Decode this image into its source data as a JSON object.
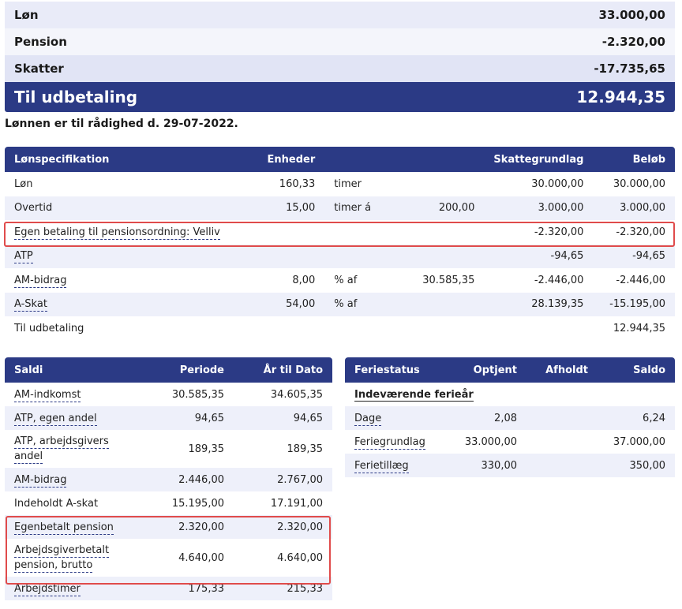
{
  "summary": {
    "rows": [
      {
        "label": "Løn",
        "value": "33.000,00"
      },
      {
        "label": "Pension",
        "value": "-2.320,00"
      },
      {
        "label": "Skatter",
        "value": "-17.735,65"
      }
    ],
    "total": {
      "label": "Til udbetaling",
      "value": "12.944,35"
    }
  },
  "availability_text": "Lønnen er til rådighed d. 29-07-2022.",
  "payslip": {
    "headers": {
      "label": "Lønspecifikation",
      "units": "Enheder",
      "tax_base": "Skattegrundlag",
      "amount": "Beløb"
    },
    "rows": [
      {
        "label": "Løn",
        "units": "160,33",
        "unit_text": "timer",
        "rate": "",
        "tax_base": "30.000,00",
        "amount": "30.000,00"
      },
      {
        "label": "Overtid",
        "units": "15,00",
        "unit_text": "timer á",
        "rate": "200,00",
        "tax_base": "3.000,00",
        "amount": "3.000,00"
      },
      {
        "label": "Egen betaling til pensionsordning: Velliv",
        "units": "",
        "unit_text": "",
        "rate": "",
        "tax_base": "-2.320,00",
        "amount": "-2.320,00"
      },
      {
        "label": "ATP",
        "units": "",
        "unit_text": "",
        "rate": "",
        "tax_base": "-94,65",
        "amount": "-94,65"
      },
      {
        "label": "AM-bidrag",
        "units": "8,00",
        "unit_text": "% af",
        "rate": "30.585,35",
        "tax_base": "-2.446,00",
        "amount": "-2.446,00"
      },
      {
        "label": "A-Skat",
        "units": "54,00",
        "unit_text": "% af",
        "rate": "",
        "tax_base": "28.139,35",
        "amount": "-15.195,00"
      },
      {
        "label": "Til udbetaling",
        "units": "",
        "unit_text": "",
        "rate": "",
        "tax_base": "",
        "amount": "12.944,35"
      }
    ]
  },
  "balances": {
    "headers": {
      "label": "Saldi",
      "period": "Periode",
      "ytd": "År til Dato"
    },
    "rows": [
      {
        "label": "AM-indkomst",
        "period": "30.585,35",
        "ytd": "34.605,35"
      },
      {
        "label": "ATP, egen andel",
        "period": "94,65",
        "ytd": "94,65"
      },
      {
        "label_lines": [
          "ATP, arbejdsgivers",
          "andel"
        ],
        "period": "189,35",
        "ytd": "189,35"
      },
      {
        "label": "AM-bidrag",
        "period": "2.446,00",
        "ytd": "2.767,00"
      },
      {
        "label": "Indeholdt A-skat",
        "period": "15.195,00",
        "ytd": "17.191,00"
      },
      {
        "label": "Egenbetalt pension",
        "period": "2.320,00",
        "ytd": "2.320,00"
      },
      {
        "label_lines": [
          "Arbejdsgiverbetalt",
          "pension, brutto"
        ],
        "period": "4.640,00",
        "ytd": "4.640,00"
      },
      {
        "label": "Arbejdstimer",
        "period": "175,33",
        "ytd": "215,33"
      }
    ]
  },
  "holiday": {
    "headers": {
      "label": "Feriestatus",
      "earned": "Optjent",
      "taken": "Afholdt",
      "balance": "Saldo"
    },
    "section": "Indeværende ferieår",
    "rows": [
      {
        "label": "Dage",
        "earned": "2,08",
        "taken": "",
        "balance": "6,24"
      },
      {
        "label": "Feriegrundlag",
        "earned": "33.000,00",
        "taken": "",
        "balance": "37.000,00"
      },
      {
        "label": "Ferietillæg",
        "earned": "330,00",
        "taken": "",
        "balance": "350,00"
      }
    ]
  },
  "colors": {
    "header_navy": "#2b3a85",
    "row_alt": "#eef0fa",
    "highlight_red": "#e04b4b"
  }
}
